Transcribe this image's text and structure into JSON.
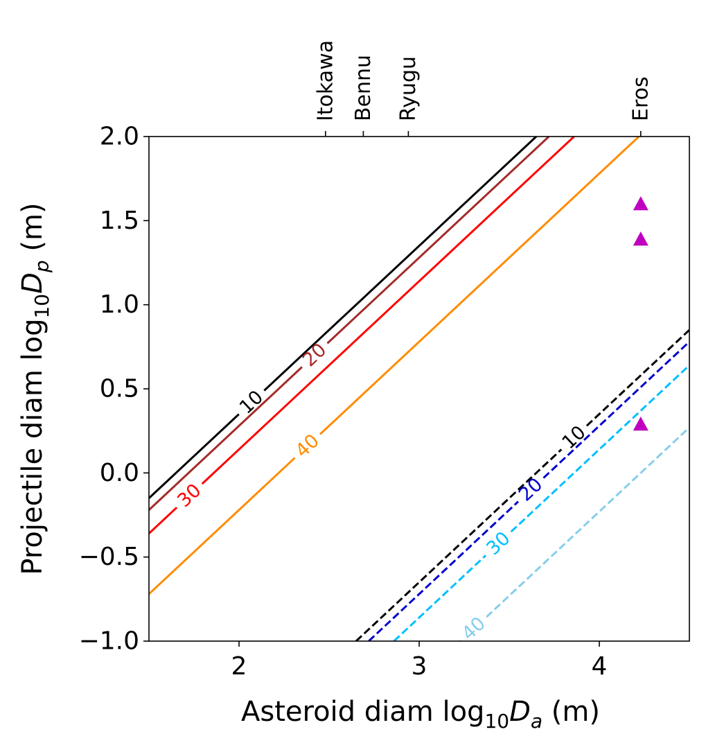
{
  "chart_data": {
    "type": "line",
    "xlabel": {
      "prefix": "Asteroid diam log",
      "sub": "10",
      "var": "D",
      "varsub": "a",
      "unit": " (m)"
    },
    "ylabel": {
      "prefix": "Projectile diam log",
      "sub": "10",
      "var": "D",
      "varsub": "p",
      "unit": " (m)"
    },
    "xlim": [
      1.5,
      4.5
    ],
    "ylim": [
      -1.0,
      2.0
    ],
    "xticks": [
      {
        "value": 2,
        "label": "2"
      },
      {
        "value": 3,
        "label": "3"
      },
      {
        "value": 4,
        "label": "4"
      }
    ],
    "yticks": [
      {
        "value": 2.0,
        "label": "2.0"
      },
      {
        "value": 1.5,
        "label": "1.5"
      },
      {
        "value": 1.0,
        "label": "1.0"
      },
      {
        "value": 0.5,
        "label": "0.5"
      },
      {
        "value": 0.0,
        "label": "0.0"
      },
      {
        "value": -0.5,
        "label": "−0.5"
      },
      {
        "value": -1.0,
        "label": "−1.0"
      }
    ],
    "top_labels": [
      {
        "name": "Itokawa",
        "x": 2.48
      },
      {
        "name": "Bennu",
        "x": 2.69
      },
      {
        "name": "Ryugu",
        "x": 2.94
      },
      {
        "name": "Eros",
        "x": 4.23
      }
    ],
    "series": [
      {
        "name": "solid-10",
        "label": "10",
        "color": "#000000",
        "dash": false,
        "x": [
          1.5,
          3.65
        ],
        "y": [
          -0.15,
          2.0
        ],
        "label_at": [
          2.06,
          0.43
        ]
      },
      {
        "name": "solid-20",
        "label": "20",
        "color": "#a52a2a",
        "dash": false,
        "x": [
          1.5,
          3.72
        ],
        "y": [
          -0.22,
          2.0
        ],
        "label_at": [
          2.42,
          0.7
        ]
      },
      {
        "name": "solid-30",
        "label": "30",
        "color": "#ff0000",
        "dash": false,
        "x": [
          1.5,
          3.86
        ],
        "y": [
          -0.36,
          2.0
        ],
        "label_at": [
          1.72,
          -0.13
        ]
      },
      {
        "name": "solid-40",
        "label": "40",
        "color": "#ff8c00",
        "dash": false,
        "x": [
          1.5,
          4.22
        ],
        "y": [
          -0.72,
          2.0
        ],
        "label_at": [
          2.38,
          0.16
        ]
      },
      {
        "name": "dashed-10",
        "label": "10",
        "color": "#000000",
        "dash": true,
        "x": [
          2.65,
          4.5
        ],
        "y": [
          -1.0,
          0.85
        ],
        "label_at": [
          3.86,
          0.21
        ]
      },
      {
        "name": "dashed-20",
        "label": "20",
        "color": "#0000cd",
        "dash": true,
        "x": [
          2.72,
          4.5
        ],
        "y": [
          -1.0,
          0.78
        ],
        "label_at": [
          3.62,
          -0.1
        ]
      },
      {
        "name": "dashed-30",
        "label": "30",
        "color": "#00bfff",
        "dash": true,
        "x": [
          2.86,
          4.5
        ],
        "y": [
          -1.0,
          0.64
        ],
        "label_at": [
          3.44,
          -0.42
        ]
      },
      {
        "name": "dashed-40",
        "label": "40",
        "color": "#87ceeb",
        "dash": true,
        "x": [
          3.23,
          4.5
        ],
        "y": [
          -1.0,
          0.27
        ],
        "label_at": [
          3.28,
          -0.9
        ]
      }
    ],
    "markers": {
      "color": "#c000c0",
      "shape": "triangle",
      "points": [
        {
          "x": 4.23,
          "y": 1.6
        },
        {
          "x": 4.23,
          "y": 1.39
        },
        {
          "x": 4.23,
          "y": 0.29
        }
      ]
    }
  }
}
